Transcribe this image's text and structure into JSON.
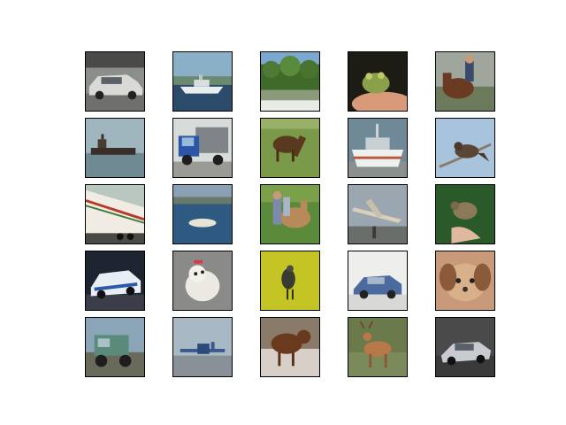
{
  "grid": {
    "rows": 5,
    "cols": 5,
    "images": [
      {
        "subject": "car"
      },
      {
        "subject": "ship"
      },
      {
        "subject": "trees"
      },
      {
        "subject": "frog"
      },
      {
        "subject": "horse-with-rider"
      },
      {
        "subject": "ship"
      },
      {
        "subject": "truck"
      },
      {
        "subject": "horse"
      },
      {
        "subject": "ship"
      },
      {
        "subject": "bird"
      },
      {
        "subject": "truck"
      },
      {
        "subject": "ship"
      },
      {
        "subject": "horse-with-people"
      },
      {
        "subject": "airplane"
      },
      {
        "subject": "bird"
      },
      {
        "subject": "car"
      },
      {
        "subject": "dog"
      },
      {
        "subject": "bird"
      },
      {
        "subject": "car"
      },
      {
        "subject": "dog"
      },
      {
        "subject": "truck"
      },
      {
        "subject": "airplane"
      },
      {
        "subject": "deer"
      },
      {
        "subject": "deer"
      },
      {
        "subject": "car"
      }
    ]
  }
}
